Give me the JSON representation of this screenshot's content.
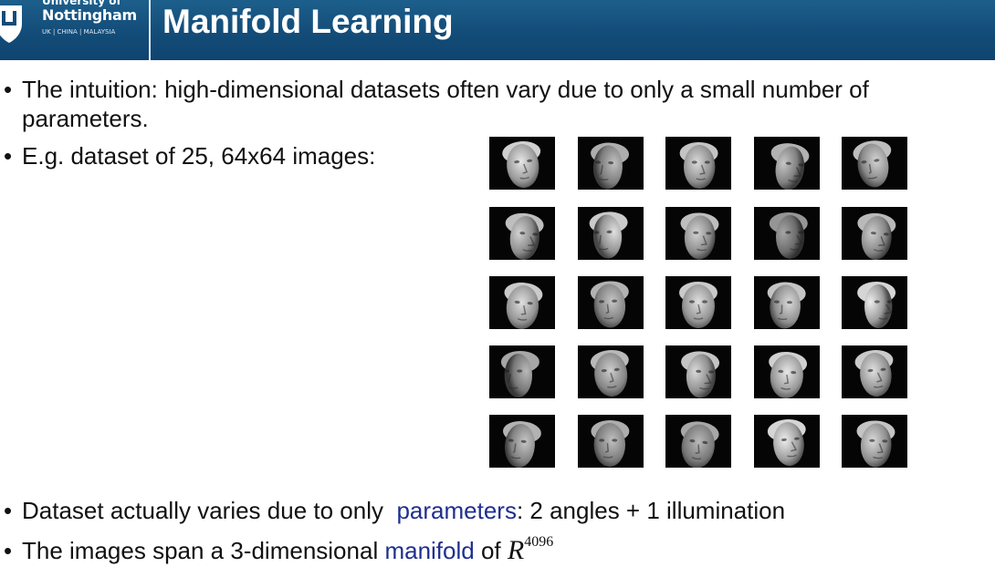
{
  "header": {
    "logo": {
      "line1": "University of",
      "line2": "Nottingham",
      "line3": "UK | CHINA | MALAYSIA"
    },
    "title": "Manifold Learning"
  },
  "bullets": {
    "b1_line1": "The intuition: high-dimensional datasets often vary due to only a small number of",
    "b1_line2": "parameters.",
    "b2": "E.g. dataset of 25, 64x64 images:",
    "b3_pre": "Dataset actually varies due to only  ",
    "b3_hl": "parameters",
    "b3_post": ": 2 angles + 1 illumination",
    "b4_pre": "The images span a 3-dimensional ",
    "b4_hl": "manifold",
    "b4_post": " of ",
    "b4_math": "R",
    "b4_exp": "4096"
  },
  "face_grid": {
    "rows": 5,
    "cols": 5,
    "faces": [
      {
        "angle": 0.1,
        "tilt": -0.2,
        "light": 0.85
      },
      {
        "angle": -0.5,
        "tilt": 0.1,
        "light": 0.55
      },
      {
        "angle": 0.2,
        "tilt": 0.0,
        "light": 0.75
      },
      {
        "angle": 0.6,
        "tilt": 0.3,
        "light": 0.6
      },
      {
        "angle": -0.3,
        "tilt": -0.3,
        "light": 0.7
      },
      {
        "angle": 0.5,
        "tilt": 0.2,
        "light": 0.7
      },
      {
        "angle": -0.6,
        "tilt": -0.1,
        "light": 0.8
      },
      {
        "angle": 0.3,
        "tilt": 0.1,
        "light": 0.7
      },
      {
        "angle": 0.6,
        "tilt": 0.0,
        "light": 0.35
      },
      {
        "angle": 0.4,
        "tilt": 0.2,
        "light": 0.65
      },
      {
        "angle": 0.1,
        "tilt": 0.2,
        "light": 0.8
      },
      {
        "angle": -0.2,
        "tilt": -0.1,
        "light": 0.6
      },
      {
        "angle": 0.0,
        "tilt": 0.0,
        "light": 0.8
      },
      {
        "angle": -0.3,
        "tilt": 0.1,
        "light": 0.75
      },
      {
        "angle": 0.7,
        "tilt": 0.0,
        "light": 0.9
      },
      {
        "angle": -0.7,
        "tilt": 0.0,
        "light": 0.5
      },
      {
        "angle": 0.0,
        "tilt": -0.2,
        "light": 0.65
      },
      {
        "angle": 0.5,
        "tilt": 0.1,
        "light": 0.75
      },
      {
        "angle": 0.0,
        "tilt": 0.2,
        "light": 0.85
      },
      {
        "angle": 0.2,
        "tilt": -0.2,
        "light": 0.8
      },
      {
        "angle": -0.4,
        "tilt": 0.2,
        "light": 0.6
      },
      {
        "angle": -0.2,
        "tilt": 0.0,
        "light": 0.55
      },
      {
        "angle": 0.0,
        "tilt": 0.3,
        "light": 0.5
      },
      {
        "angle": 0.3,
        "tilt": -0.2,
        "light": 0.9
      },
      {
        "angle": 0.3,
        "tilt": 0.1,
        "light": 0.75
      }
    ]
  },
  "colors": {
    "header_bg": "#134c78",
    "highlight": "#1f2f8f",
    "text": "#111111"
  }
}
